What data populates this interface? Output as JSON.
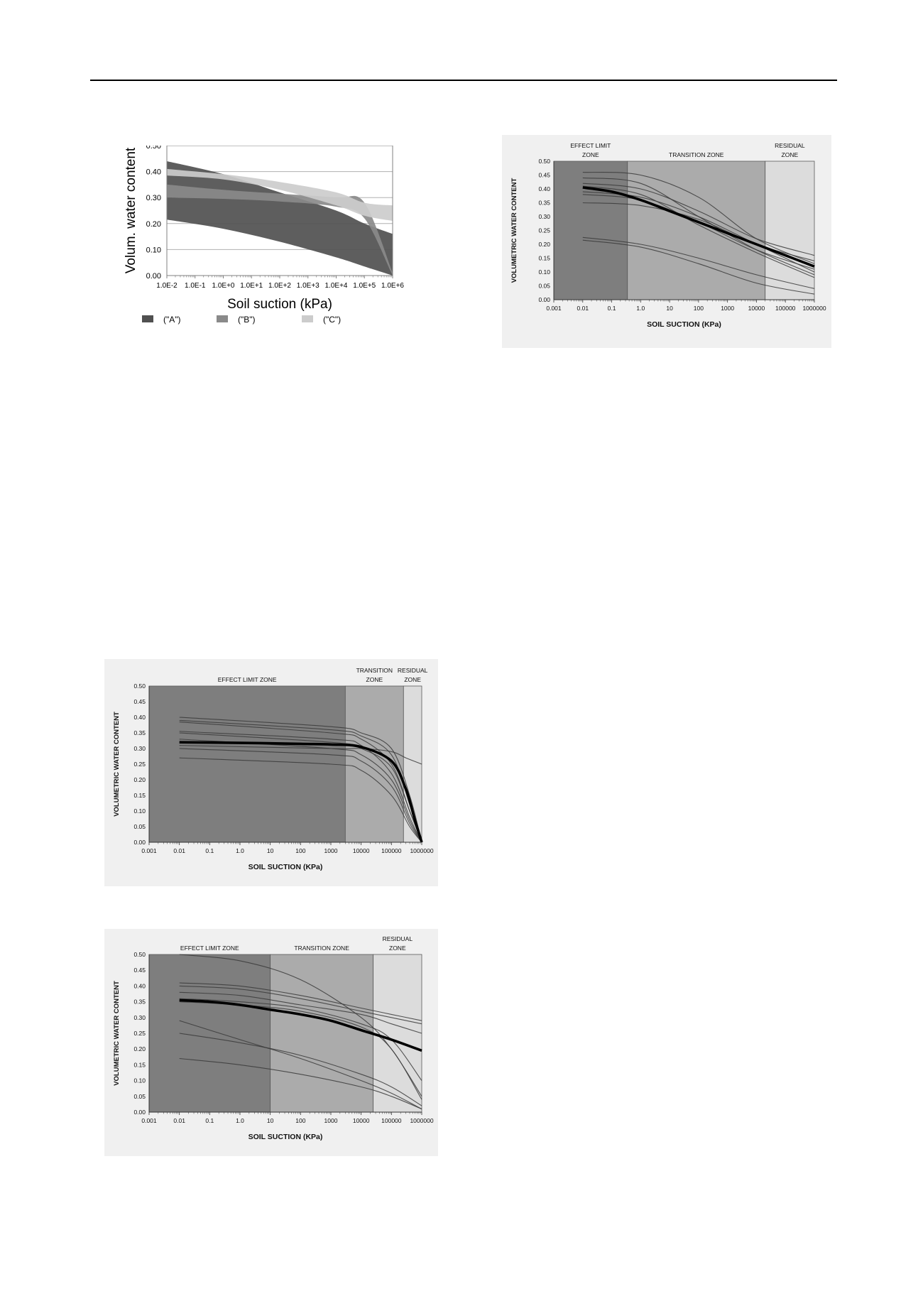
{
  "chart_data": [
    {
      "id": "fig-a",
      "type": "area",
      "title": "",
      "xlabel": "Soil suction (kPa)",
      "ylabel": "Volum. water content",
      "x_scale": "log",
      "xlim": [
        0.01,
        1000000
      ],
      "ylim": [
        0,
        0.5
      ],
      "xticks": [
        "1.0E-2",
        "1.0E-1",
        "1.0E+0",
        "1.0E+1",
        "1.0E+2",
        "1.0E+3",
        "1.0E+4",
        "1.0E+5",
        "1.0E+6"
      ],
      "yticks": [
        "0.00",
        "0.10",
        "0.20",
        "0.30",
        "0.40",
        "0.50"
      ],
      "grid": true,
      "legend_position": "bottom",
      "series": [
        {
          "name": "(\"A\")",
          "color": "#505050",
          "x": [
            0.01,
            1,
            100,
            10000,
            100000,
            1000000
          ],
          "upper": [
            0.44,
            0.39,
            0.32,
            0.25,
            0.2,
            0.16
          ],
          "lower": [
            0.215,
            0.18,
            0.13,
            0.07,
            0.035,
            0.0
          ]
        },
        {
          "name": "(\"B\")",
          "color": "#8a8a8a",
          "x": [
            0.01,
            1,
            100,
            10000,
            100000,
            1000000
          ],
          "upper": [
            0.35,
            0.33,
            0.315,
            0.3,
            0.28,
            0.01
          ],
          "lower": [
            0.3,
            0.295,
            0.285,
            0.265,
            0.22,
            0.0
          ]
        },
        {
          "name": "(\"C\")",
          "color": "#cccccc",
          "x": [
            0.01,
            1,
            100,
            10000,
            100000,
            1000000
          ],
          "upper": [
            0.41,
            0.39,
            0.36,
            0.32,
            0.28,
            0.27
          ],
          "lower": [
            0.385,
            0.37,
            0.33,
            0.27,
            0.23,
            0.21
          ]
        }
      ]
    },
    {
      "id": "fig-b",
      "type": "line",
      "title": "",
      "xlabel": "SOIL SUCTION (KPa)",
      "ylabel": "VOLUMETRIC WATER CONTENT",
      "x_scale": "log",
      "xlim": [
        0.001,
        1000000
      ],
      "ylim": [
        0,
        0.5
      ],
      "xticks": [
        "0.001",
        "0.01",
        "0.1",
        "1.0",
        "10",
        "100",
        "1000",
        "10000",
        "100000",
        "1000000"
      ],
      "yticks": [
        "0.00",
        "0.05",
        "0.10",
        "0.15",
        "0.20",
        "0.25",
        "0.30",
        "0.35",
        "0.40",
        "0.45",
        "0.50"
      ],
      "zones": [
        {
          "label_lines": [
            "EFFECT LIMIT",
            "ZONE"
          ],
          "x_from": 0.001,
          "x_to": 0.35,
          "color": "#7e7e7e"
        },
        {
          "label_lines": [
            "TRANSITION ZONE"
          ],
          "x_from": 0.35,
          "x_to": 20000,
          "color": "#ababab"
        },
        {
          "label_lines": [
            "RESIDUAL",
            "ZONE"
          ],
          "x_from": 20000,
          "x_to": 1000000,
          "color": "#dcdcdc"
        }
      ],
      "mean": {
        "x": [
          0.01,
          0.1,
          1,
          10,
          100,
          1000,
          10000,
          100000,
          1000000
        ],
        "y": [
          0.405,
          0.39,
          0.36,
          0.32,
          0.28,
          0.24,
          0.2,
          0.16,
          0.12
        ]
      },
      "curves": [
        {
          "x": [
            0.01,
            1,
            100,
            10000,
            1000000
          ],
          "y": [
            0.46,
            0.45,
            0.37,
            0.22,
            0.13
          ]
        },
        {
          "x": [
            0.01,
            1,
            100,
            10000,
            1000000
          ],
          "y": [
            0.44,
            0.42,
            0.3,
            0.18,
            0.09
          ]
        },
        {
          "x": [
            0.01,
            1,
            100,
            10000,
            1000000
          ],
          "y": [
            0.42,
            0.4,
            0.32,
            0.22,
            0.16
          ]
        },
        {
          "x": [
            0.01,
            1,
            100,
            10000,
            1000000
          ],
          "y": [
            0.41,
            0.38,
            0.27,
            0.17,
            0.08
          ]
        },
        {
          "x": [
            0.01,
            1,
            100,
            10000,
            1000000
          ],
          "y": [
            0.39,
            0.37,
            0.3,
            0.2,
            0.1
          ]
        },
        {
          "x": [
            0.01,
            1,
            100,
            10000,
            1000000
          ],
          "y": [
            0.38,
            0.36,
            0.28,
            0.18,
            0.11
          ]
        },
        {
          "x": [
            0.01,
            1,
            100,
            10000,
            1000000
          ],
          "y": [
            0.35,
            0.34,
            0.29,
            0.2,
            0.14
          ]
        },
        {
          "x": [
            0.01,
            1,
            100,
            10000,
            1000000
          ],
          "y": [
            0.225,
            0.2,
            0.15,
            0.09,
            0.04
          ]
        },
        {
          "x": [
            0.01,
            1,
            100,
            10000,
            1000000
          ],
          "y": [
            0.215,
            0.19,
            0.13,
            0.06,
            0.02
          ]
        }
      ]
    },
    {
      "id": "fig-c",
      "type": "line",
      "title": "",
      "xlabel": "SOIL SUCTION (KPa)",
      "ylabel": "VOLUMETRIC WATER CONTENT",
      "x_scale": "log",
      "xlim": [
        0.001,
        1000000
      ],
      "ylim": [
        0,
        0.5
      ],
      "xticks": [
        "0.001",
        "0.01",
        "0.1",
        "1.0",
        "10",
        "100",
        "1000",
        "10000",
        "100000",
        "1000000"
      ],
      "yticks": [
        "0.00",
        "0.05",
        "0.10",
        "0.15",
        "0.20",
        "0.25",
        "0.30",
        "0.35",
        "0.40",
        "0.45",
        "0.50"
      ],
      "zones": [
        {
          "label_lines": [
            "EFFECT LIMIT ZONE"
          ],
          "x_from": 0.001,
          "x_to": 3000,
          "color": "#7e7e7e"
        },
        {
          "label_lines": [
            "TRANSITION",
            "ZONE"
          ],
          "x_from": 3000,
          "x_to": 250000,
          "color": "#ababab"
        },
        {
          "label_lines": [
            "RESIDUAL",
            "ZONE"
          ],
          "x_from": 250000,
          "x_to": 1000000,
          "color": "#dcdcdc"
        }
      ],
      "mean": {
        "x": [
          0.01,
          1,
          100,
          1000,
          10000,
          100000,
          300000,
          600000,
          1000000
        ],
        "y": [
          0.32,
          0.318,
          0.315,
          0.313,
          0.305,
          0.26,
          0.17,
          0.07,
          0.0
        ]
      },
      "curves": [
        {
          "x": [
            0.01,
            1000,
            10000,
            100000,
            400000,
            1000000
          ],
          "y": [
            0.4,
            0.37,
            0.35,
            0.3,
            0.15,
            0.0
          ]
        },
        {
          "x": [
            0.01,
            1000,
            10000,
            100000,
            400000,
            1000000
          ],
          "y": [
            0.39,
            0.36,
            0.34,
            0.28,
            0.12,
            0.0
          ]
        },
        {
          "x": [
            0.01,
            1000,
            10000,
            100000,
            400000,
            1000000
          ],
          "y": [
            0.385,
            0.35,
            0.33,
            0.25,
            0.1,
            0.0
          ]
        },
        {
          "x": [
            0.01,
            1000,
            10000,
            100000,
            400000,
            1000000
          ],
          "y": [
            0.355,
            0.33,
            0.31,
            0.22,
            0.08,
            0.0
          ]
        },
        {
          "x": [
            0.01,
            1000,
            10000,
            100000,
            400000,
            1000000
          ],
          "y": [
            0.35,
            0.32,
            0.3,
            0.24,
            0.1,
            0.0
          ]
        },
        {
          "x": [
            0.01,
            1000,
            10000,
            100000,
            400000,
            1000000
          ],
          "y": [
            0.33,
            0.3,
            0.28,
            0.2,
            0.07,
            0.0
          ]
        },
        {
          "x": [
            0.01,
            1000,
            10000,
            100000,
            400000,
            1000000
          ],
          "y": [
            0.3,
            0.28,
            0.26,
            0.18,
            0.06,
            0.0
          ]
        },
        {
          "x": [
            0.01,
            1000,
            10000,
            100000,
            400000,
            1000000
          ],
          "y": [
            0.27,
            0.25,
            0.23,
            0.15,
            0.05,
            0.0
          ]
        },
        {
          "x": [
            0.01,
            1000,
            10000,
            100000,
            300000,
            1000000
          ],
          "y": [
            0.31,
            0.3,
            0.3,
            0.29,
            0.27,
            0.25
          ]
        }
      ]
    },
    {
      "id": "fig-d",
      "type": "line",
      "title": "",
      "xlabel": "SOIL SUCTION (KPa)",
      "ylabel": "VOLUMETRIC WATER CONTENT",
      "x_scale": "log",
      "xlim": [
        0.001,
        1000000
      ],
      "ylim": [
        0,
        0.5
      ],
      "xticks": [
        "0.001",
        "0.01",
        "0.1",
        "1.0",
        "10",
        "100",
        "1000",
        "10000",
        "100000",
        "1000000"
      ],
      "yticks": [
        "0.00",
        "0.05",
        "0.10",
        "0.15",
        "0.20",
        "0.25",
        "0.30",
        "0.35",
        "0.40",
        "0.45",
        "0.50"
      ],
      "zones": [
        {
          "label_lines": [
            "EFFECT LIMIT ZONE"
          ],
          "x_from": 0.001,
          "x_to": 10,
          "color": "#7e7e7e"
        },
        {
          "label_lines": [
            "TRANSITION ZONE"
          ],
          "x_from": 10,
          "x_to": 25000,
          "color": "#ababab"
        },
        {
          "label_lines": [
            "RESIDUAL",
            "ZONE"
          ],
          "x_from": 25000,
          "x_to": 1000000,
          "color": "#dcdcdc"
        }
      ],
      "mean": {
        "x": [
          0.01,
          0.1,
          1,
          10,
          100,
          1000,
          10000,
          100000,
          1000000
        ],
        "y": [
          0.355,
          0.35,
          0.34,
          0.325,
          0.31,
          0.29,
          0.26,
          0.23,
          0.195
        ]
      },
      "curves": [
        {
          "x": [
            0.01,
            1,
            100,
            10000,
            100000,
            1000000
          ],
          "y": [
            0.5,
            0.48,
            0.42,
            0.3,
            0.2,
            0.05
          ]
        },
        {
          "x": [
            0.01,
            1,
            100,
            10000,
            100000,
            1000000
          ],
          "y": [
            0.41,
            0.4,
            0.37,
            0.33,
            0.31,
            0.29
          ]
        },
        {
          "x": [
            0.01,
            1,
            100,
            10000,
            100000,
            1000000
          ],
          "y": [
            0.4,
            0.39,
            0.36,
            0.32,
            0.3,
            0.28
          ]
        },
        {
          "x": [
            0.01,
            1,
            100,
            10000,
            100000,
            1000000
          ],
          "y": [
            0.38,
            0.37,
            0.34,
            0.31,
            0.28,
            0.25
          ]
        },
        {
          "x": [
            0.01,
            1,
            100,
            10000,
            100000,
            1000000
          ],
          "y": [
            0.36,
            0.35,
            0.33,
            0.28,
            0.23,
            0.1
          ]
        },
        {
          "x": [
            0.01,
            1,
            100,
            10000,
            100000,
            1000000
          ],
          "y": [
            0.35,
            0.34,
            0.32,
            0.27,
            0.2,
            0.04
          ]
        },
        {
          "x": [
            0.01,
            1,
            100,
            10000,
            100000,
            1000000
          ],
          "y": [
            0.29,
            0.23,
            0.17,
            0.1,
            0.06,
            0.01
          ]
        },
        {
          "x": [
            0.01,
            1,
            100,
            10000,
            100000,
            1000000
          ],
          "y": [
            0.25,
            0.22,
            0.18,
            0.12,
            0.08,
            0.02
          ]
        },
        {
          "x": [
            0.01,
            1,
            100,
            10000,
            100000,
            1000000
          ],
          "y": [
            0.17,
            0.15,
            0.12,
            0.08,
            0.05,
            0.01
          ]
        }
      ]
    }
  ]
}
